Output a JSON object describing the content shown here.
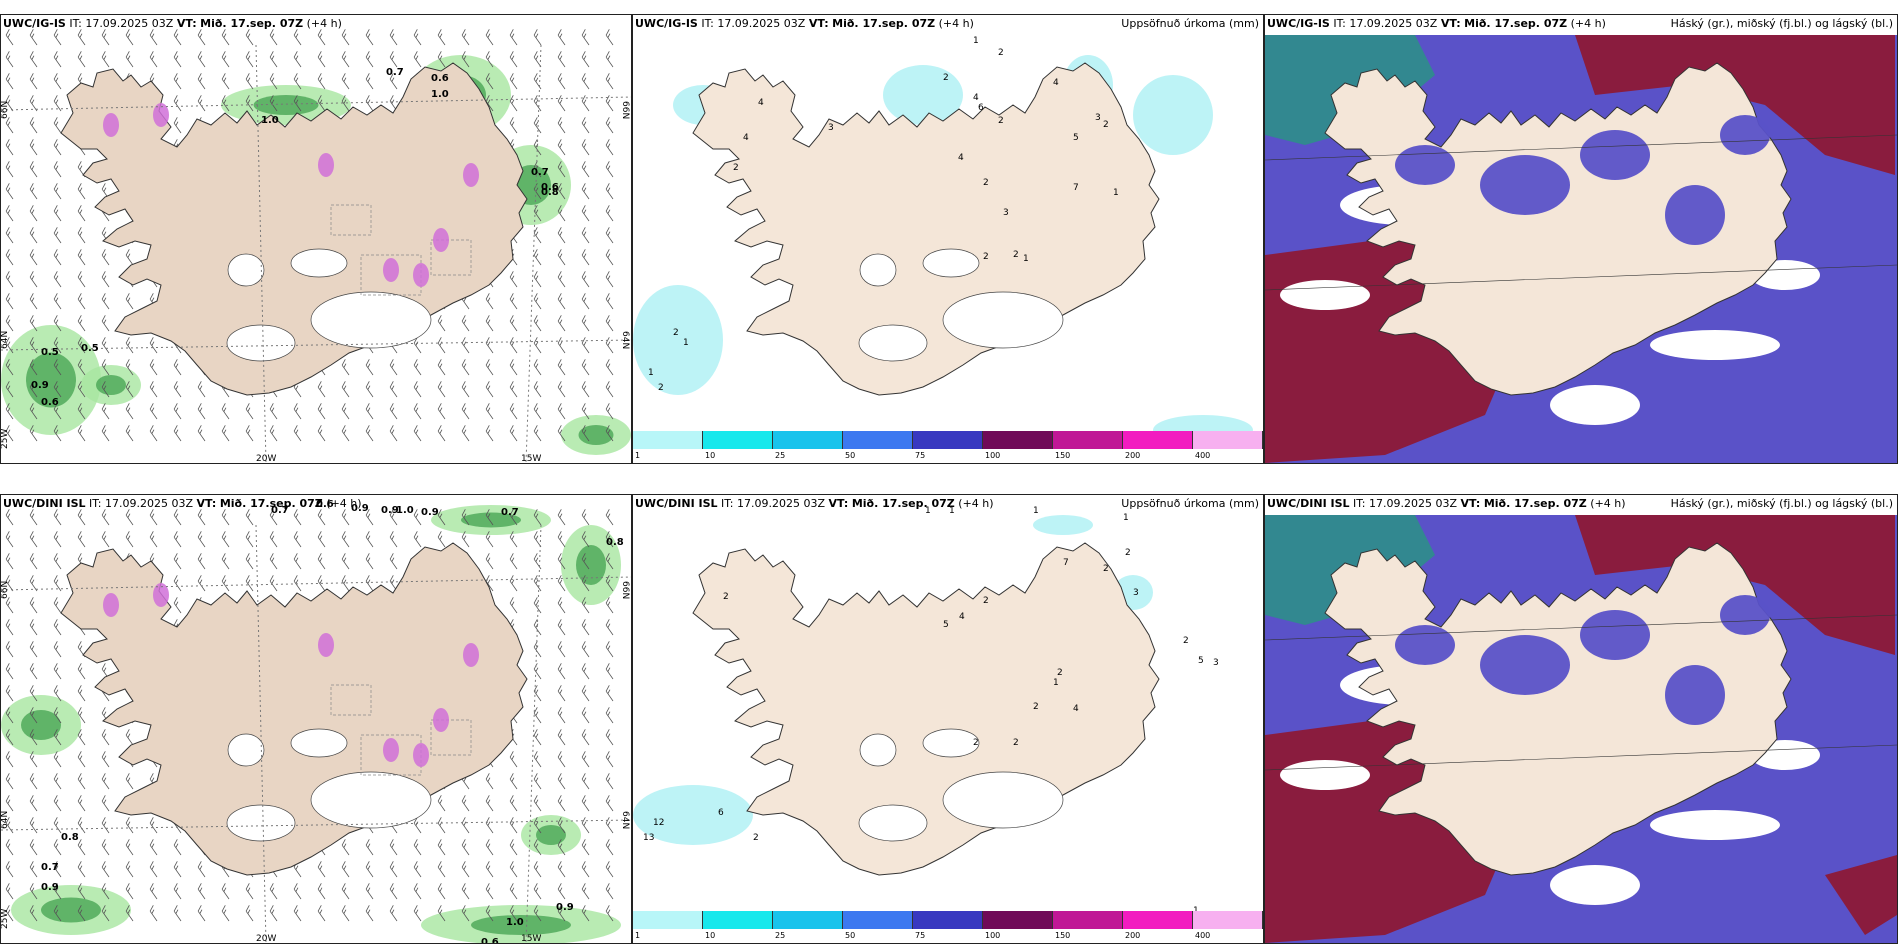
{
  "panels": [
    {
      "id": "p1",
      "model": "UWC/IG-IS",
      "it": "IT: 17.09.2025 03Z",
      "vt_label": "VT:",
      "vt": "Mið. 17.sep. 07Z",
      "lead": "(+4 h)",
      "right": "",
      "kind": "wind"
    },
    {
      "id": "p2",
      "model": "UWC/IG-IS",
      "it": "IT: 17.09.2025 03Z",
      "vt_label": "VT:",
      "vt": "Mið. 17.sep. 07Z",
      "lead": "(+4 h)",
      "right": "Uppsöfnuð úrkoma (mm)",
      "kind": "precip"
    },
    {
      "id": "p3",
      "model": "UWC/IG-IS",
      "it": "IT: 17.09.2025 03Z",
      "vt_label": "VT:",
      "vt": "Mið. 17.sep. 07Z",
      "lead": "(+4 h)",
      "right": "Háský (gr.), miðský (fj.bl.) og lágský (bl.)",
      "kind": "cloud"
    },
    {
      "id": "p4",
      "model": "UWC/DINI ISL",
      "it": "IT: 17.09.2025 03Z",
      "vt_label": "VT:",
      "vt": "Mið. 17.sep. 07Z",
      "lead": "(+4 h)",
      "right": "",
      "kind": "wind"
    },
    {
      "id": "p5",
      "model": "UWC/DINI ISL",
      "it": "IT: 17.09.2025 03Z",
      "vt_label": "VT:",
      "vt": "Mið. 17.sep. 07Z",
      "lead": "(+4 h)",
      "right": "Uppsöfnuð úrkoma (mm)",
      "kind": "precip"
    },
    {
      "id": "p6",
      "model": "UWC/DINI ISL",
      "it": "IT: 17.09.2025 03Z",
      "vt_label": "VT:",
      "vt": "Mið. 17.sep. 07Z",
      "lead": "(+4 h)",
      "right": "Háský (gr.), miðský (fj.bl.) og lágský (bl.)",
      "kind": "cloud"
    }
  ],
  "grid_labels": {
    "lat_66": "66N",
    "lat_64": "64N",
    "lon_25": "25W",
    "lon_20": "20W",
    "lon_15": "15W"
  },
  "colorbar": {
    "ticks": [
      "1",
      "10",
      "25",
      "50",
      "75",
      "100",
      "150",
      "200",
      "400"
    ],
    "colors": [
      "#b8f6f8",
      "#17e8ec",
      "#19c3ec",
      "#3c78f0",
      "#3838c0",
      "#700a58",
      "#c01896",
      "#f21cc0",
      "#f7b0f0"
    ]
  },
  "wind_annotations_top": [
    "0.7",
    "0.6",
    "1.0",
    "1.0",
    "0.5",
    "0.5",
    "0.9",
    "0.6",
    "0.7",
    "0.6",
    "0.8"
  ],
  "wind_annotations_bottom": [
    "0.7",
    "0.6",
    "0.9",
    "0.9",
    "1.0",
    "0.9",
    "0.7",
    "0.8",
    "0.8",
    "0.7",
    "0.9",
    "1.0",
    "0.9",
    "0.6"
  ],
  "precip_numbers_top": [
    "1",
    "2",
    "2",
    "4",
    "3",
    "4",
    "2",
    "4",
    "6",
    "2",
    "4",
    "5",
    "7",
    "4",
    "2",
    "3",
    "3",
    "2",
    "1",
    "2",
    "2",
    "1",
    "1",
    "2",
    "2",
    "1"
  ],
  "precip_numbers_bottom": [
    "1",
    "1",
    "1",
    "2",
    "2",
    "2",
    "2",
    "4",
    "5",
    "7",
    "3",
    "1",
    "2",
    "4",
    "2",
    "5",
    "3",
    "2",
    "6",
    "2",
    "12",
    "13",
    "1",
    "2",
    "2",
    "1"
  ],
  "colors": {
    "land": "#f4e6d8",
    "land_wind": "#e8d5c4",
    "cloud_high": "#8a1c3e",
    "cloud_mid": "#5a52c8",
    "cloud_low": "#ffffff",
    "sea_cloud": "#5a52c8"
  }
}
